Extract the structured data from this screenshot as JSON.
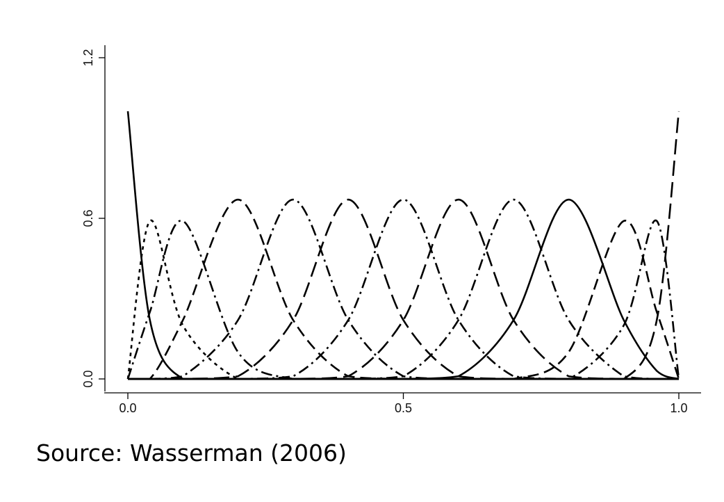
{
  "chart_data": {
    "type": "line",
    "title": "",
    "xlabel": "",
    "ylabel": "",
    "xlim": [
      0,
      1
    ],
    "ylim": [
      0,
      1.2
    ],
    "x_ticks": [
      {
        "value": 0.0,
        "label": "0.0"
      },
      {
        "value": 0.5,
        "label": "0.5"
      },
      {
        "value": 1.0,
        "label": "1.0"
      }
    ],
    "y_ticks": [
      {
        "value": 0.0,
        "label": "0.0"
      },
      {
        "value": 0.6,
        "label": "0.6"
      },
      {
        "value": 1.2,
        "label": "1.2"
      }
    ],
    "grid": false,
    "legend": "none",
    "x": [
      0,
      0.04,
      0.1,
      0.2,
      0.3,
      0.4,
      0.5,
      0.6,
      0.7,
      0.8,
      0.9,
      0.96,
      1.0
    ],
    "series": [
      {
        "line_style": "solid",
        "values": [
          1.0,
          0.22,
          0.0,
          0.0,
          0.0,
          0.0,
          0.0,
          0.0,
          0.0,
          0.0,
          0.0,
          0.0,
          0.0
        ]
      },
      {
        "line_style": "dotted",
        "values": [
          0.0,
          0.59,
          0.2,
          0.0,
          0.0,
          0.0,
          0.0,
          0.0,
          0.0,
          0.0,
          0.0,
          0.0,
          0.0
        ]
      },
      {
        "line_style": "dashdot",
        "values": [
          0.0,
          0.25,
          0.59,
          0.1,
          0.0,
          0.0,
          0.0,
          0.0,
          0.0,
          0.0,
          0.0,
          0.0,
          0.0
        ]
      },
      {
        "line_style": "dashed",
        "values": [
          0.0,
          0.0,
          0.22,
          0.67,
          0.22,
          0.01,
          0.0,
          0.0,
          0.0,
          0.0,
          0.0,
          0.0,
          0.0
        ]
      },
      {
        "line_style": "dashdot",
        "values": [
          0.0,
          0.0,
          0.01,
          0.22,
          0.67,
          0.22,
          0.01,
          0.0,
          0.0,
          0.0,
          0.0,
          0.0,
          0.0
        ]
      },
      {
        "line_style": "longdash",
        "values": [
          0.0,
          0.0,
          0.0,
          0.01,
          0.22,
          0.67,
          0.22,
          0.01,
          0.0,
          0.0,
          0.0,
          0.0,
          0.0
        ]
      },
      {
        "line_style": "dashdot",
        "values": [
          0.0,
          0.0,
          0.0,
          0.0,
          0.01,
          0.22,
          0.67,
          0.22,
          0.01,
          0.0,
          0.0,
          0.0,
          0.0
        ]
      },
      {
        "line_style": "longdash",
        "values": [
          0.0,
          0.0,
          0.0,
          0.0,
          0.0,
          0.01,
          0.22,
          0.67,
          0.22,
          0.01,
          0.0,
          0.0,
          0.0
        ]
      },
      {
        "line_style": "dashdot",
        "values": [
          0.0,
          0.0,
          0.0,
          0.0,
          0.0,
          0.0,
          0.01,
          0.22,
          0.67,
          0.22,
          0.01,
          0.0,
          0.0
        ]
      },
      {
        "line_style": "solid",
        "values": [
          0.0,
          0.0,
          0.0,
          0.0,
          0.0,
          0.0,
          0.0,
          0.01,
          0.22,
          0.67,
          0.22,
          0.03,
          0.0
        ]
      },
      {
        "line_style": "dashed",
        "values": [
          0.0,
          0.0,
          0.0,
          0.0,
          0.0,
          0.0,
          0.0,
          0.0,
          0.0,
          0.1,
          0.59,
          0.25,
          0.0
        ]
      },
      {
        "line_style": "dashdot",
        "values": [
          0.0,
          0.0,
          0.0,
          0.0,
          0.0,
          0.0,
          0.0,
          0.0,
          0.0,
          0.0,
          0.2,
          0.59,
          0.0
        ]
      },
      {
        "line_style": "longdash",
        "values": [
          0.0,
          0.0,
          0.0,
          0.0,
          0.0,
          0.0,
          0.0,
          0.0,
          0.0,
          0.0,
          0.0,
          0.22,
          1.0
        ]
      }
    ]
  },
  "source": {
    "text": "Source:  Wasserman (2006)"
  }
}
